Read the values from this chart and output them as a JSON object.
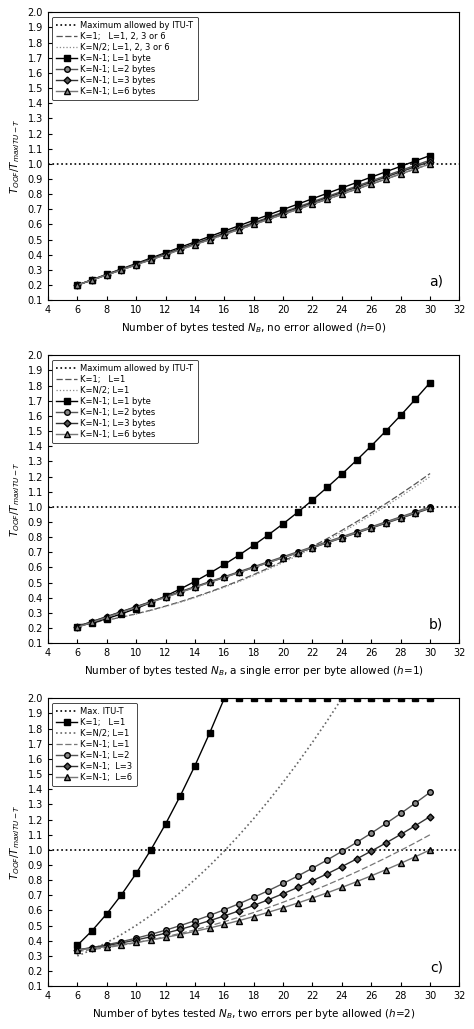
{
  "fig_width": 4.74,
  "fig_height": 10.29,
  "dpi": 100,
  "x_values": [
    6,
    7,
    8,
    9,
    10,
    11,
    12,
    13,
    14,
    15,
    16,
    17,
    18,
    19,
    20,
    21,
    22,
    23,
    24,
    25,
    26,
    27,
    28,
    29,
    30
  ],
  "xlim": [
    4,
    32
  ],
  "ylim": [
    0.1,
    2.0
  ],
  "yticks_a": [
    0.1,
    0.2,
    0.3,
    0.4,
    0.5,
    0.6,
    0.7,
    0.8,
    0.9,
    1.0,
    1.1,
    1.2,
    1.3,
    1.4,
    1.5,
    1.6,
    1.7,
    1.8,
    1.9,
    2.0
  ],
  "yticks_bc": [
    0.1,
    0.2,
    0.3,
    0.4,
    0.5,
    0.6,
    0.7,
    0.8,
    0.9,
    1.0,
    1.1,
    1.2,
    1.3,
    1.4,
    1.5,
    1.6,
    1.7,
    1.8,
    1.9,
    2.0
  ],
  "xticks": [
    4,
    6,
    8,
    10,
    12,
    14,
    16,
    18,
    20,
    22,
    24,
    26,
    28,
    30,
    32
  ],
  "ylabel": "$T_{OOF}/T_{maxITU-T}$",
  "subplot_labels": [
    "a)",
    "b)",
    "c)"
  ],
  "xlabels": [
    "Number of bytes tested $N_B$, no error allowed ($h$=0)",
    "Number of bytes tested $N_B$, a single error per byte allowed ($h$=1)",
    "Number of bytes tested $N_B$, two errors per byte allowed ($h$=2)"
  ],
  "legend_a": [
    "Maximum allowed by ITU-T",
    "K=1;   L=1, 2, 3 or 6",
    "K=N/2; L=1, 2, 3 or 6",
    "K=N-1; L=1 byte",
    "K=N-1; L=2 bytes",
    "K=N-1; L=3 bytes",
    "K=N-1; L=6 bytes"
  ],
  "legend_b": [
    "Maximum allowed by ITU-T",
    "K=1;   L=1",
    "K=N/2; L=1",
    "K=N-1; L=1 byte",
    "K=N-1; L=2 bytes",
    "K=N-1; L=3 bytes",
    "K=N-1; L=6 bytes"
  ],
  "legend_c": [
    "Max. ITU-T",
    "K=1;   L=1",
    "K=N/2; L=1",
    "K=N-1; L=1",
    "K=N-1; L=2",
    "K=N-1;  L=3",
    "K=N-1;  L=6"
  ]
}
